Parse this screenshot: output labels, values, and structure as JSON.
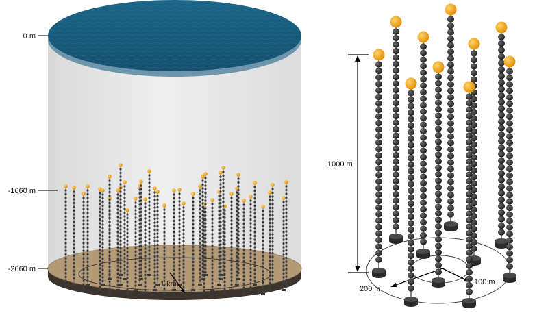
{
  "left_panel": {
    "depth_labels": {
      "surface": "0 m",
      "top": "-1660 m",
      "bottom": "-2660 m"
    },
    "scale_label": "1 km"
  },
  "right_panel": {
    "height_label": "1000 m",
    "radius_labels": {
      "outer": "200 m",
      "inner": "100 m"
    }
  },
  "colors": {
    "water": "#1a5f80",
    "seabed": "#b59a78",
    "float": "#f5a20a",
    "module": "#2e2e2e",
    "cylinder_side": "#e6e6e6"
  }
}
